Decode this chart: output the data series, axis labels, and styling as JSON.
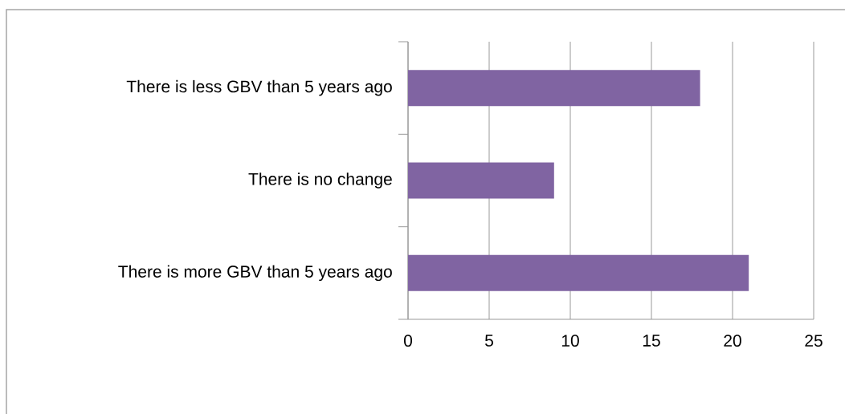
{
  "chart_data": {
    "type": "bar",
    "orientation": "horizontal",
    "categories": [
      "There is less GBV than 5 years ago",
      "There is no change",
      "There is more GBV than 5 years ago"
    ],
    "values": [
      18,
      9,
      21
    ],
    "color": "#8064a2",
    "xlim": [
      0,
      25
    ],
    "xticks": [
      0,
      5,
      10,
      15,
      20,
      25
    ],
    "grid": "x"
  }
}
